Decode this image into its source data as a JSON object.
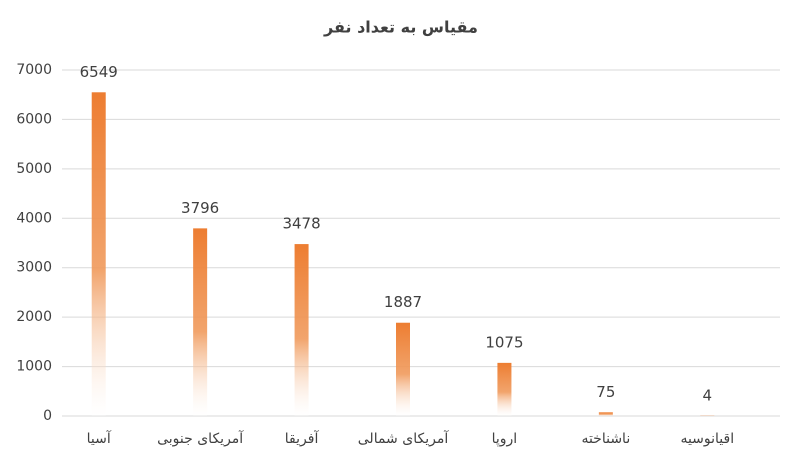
{
  "chart_data": {
    "type": "bar",
    "title": "مقیاس به تعداد نفر",
    "categories": [
      "آسیا",
      "آمریکای جنوبی",
      "آفریقا",
      "آمریکای شمالی",
      "اروپا",
      "ناشناخته",
      "اقیانوسیه"
    ],
    "values": [
      6549,
      3796,
      3478,
      1887,
      1075,
      75,
      4
    ],
    "color": "#ed7d31",
    "ylim": [
      0,
      7000
    ],
    "yticks": [
      0,
      1000,
      2000,
      3000,
      4000,
      5000,
      6000,
      7000
    ],
    "grid": true
  }
}
